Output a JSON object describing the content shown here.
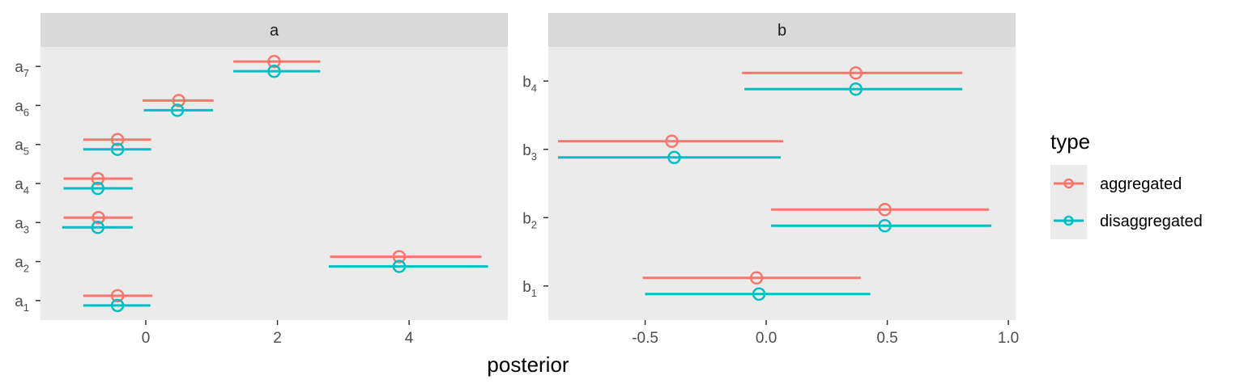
{
  "chart_data": {
    "type": "interval",
    "xlabel": "posterior",
    "ylabel": "",
    "legend": {
      "title": "type",
      "placement": "right",
      "entries": [
        {
          "name": "aggregated",
          "color": "#F8766D"
        },
        {
          "name": "disaggregated",
          "color": "#00BFC4"
        }
      ]
    },
    "panels": [
      {
        "strip": "a",
        "xlim": [
          -1.6,
          5.5
        ],
        "xticks": [
          0,
          2,
          4
        ],
        "xtick_labels": [
          "0",
          "2",
          "4"
        ],
        "ylabels": [
          {
            "base": "a",
            "sub": "1"
          },
          {
            "base": "a",
            "sub": "2"
          },
          {
            "base": "a",
            "sub": "3"
          },
          {
            "base": "a",
            "sub": "4"
          },
          {
            "base": "a",
            "sub": "5"
          },
          {
            "base": "a",
            "sub": "6"
          },
          {
            "base": "a",
            "sub": "7"
          }
        ],
        "series": [
          {
            "name": "aggregated",
            "points": [
              {
                "est": -0.43,
                "lo": -0.95,
                "hi": 0.1
              },
              {
                "est": 3.85,
                "lo": 2.8,
                "hi": 5.1
              },
              {
                "est": -0.72,
                "lo": -1.25,
                "hi": -0.2
              },
              {
                "est": -0.73,
                "lo": -1.25,
                "hi": -0.2
              },
              {
                "est": -0.43,
                "lo": -0.95,
                "hi": 0.08
              },
              {
                "est": 0.5,
                "lo": -0.05,
                "hi": 1.03
              },
              {
                "est": 1.95,
                "lo": 1.33,
                "hi": 2.65
              }
            ]
          },
          {
            "name": "disaggregated",
            "points": [
              {
                "est": -0.43,
                "lo": -0.95,
                "hi": 0.07
              },
              {
                "est": 3.85,
                "lo": 2.78,
                "hi": 5.2
              },
              {
                "est": -0.73,
                "lo": -1.27,
                "hi": -0.2
              },
              {
                "est": -0.73,
                "lo": -1.25,
                "hi": -0.2
              },
              {
                "est": -0.43,
                "lo": -0.95,
                "hi": 0.08
              },
              {
                "est": 0.48,
                "lo": -0.03,
                "hi": 1.02
              },
              {
                "est": 1.95,
                "lo": 1.33,
                "hi": 2.65
              }
            ]
          }
        ]
      },
      {
        "strip": "b",
        "xlim": [
          -0.9,
          1.03
        ],
        "xticks": [
          -0.5,
          0.0,
          0.5,
          1.0
        ],
        "xtick_labels": [
          "-0.5",
          "0.0",
          "0.5",
          "1.0"
        ],
        "ylabels": [
          {
            "base": "b",
            "sub": "1"
          },
          {
            "base": "b",
            "sub": "2"
          },
          {
            "base": "b",
            "sub": "3"
          },
          {
            "base": "b",
            "sub": "4"
          }
        ],
        "series": [
          {
            "name": "aggregated",
            "points": [
              {
                "est": -0.04,
                "lo": -0.51,
                "hi": 0.39
              },
              {
                "est": 0.49,
                "lo": 0.02,
                "hi": 0.92
              },
              {
                "est": -0.39,
                "lo": -0.86,
                "hi": 0.07
              },
              {
                "est": 0.37,
                "lo": -0.1,
                "hi": 0.81
              }
            ]
          },
          {
            "name": "disaggregated",
            "points": [
              {
                "est": -0.03,
                "lo": -0.5,
                "hi": 0.43
              },
              {
                "est": 0.49,
                "lo": 0.02,
                "hi": 0.93
              },
              {
                "est": -0.38,
                "lo": -0.86,
                "hi": 0.06
              },
              {
                "est": 0.37,
                "lo": -0.09,
                "hi": 0.81
              }
            ]
          }
        ]
      }
    ]
  }
}
